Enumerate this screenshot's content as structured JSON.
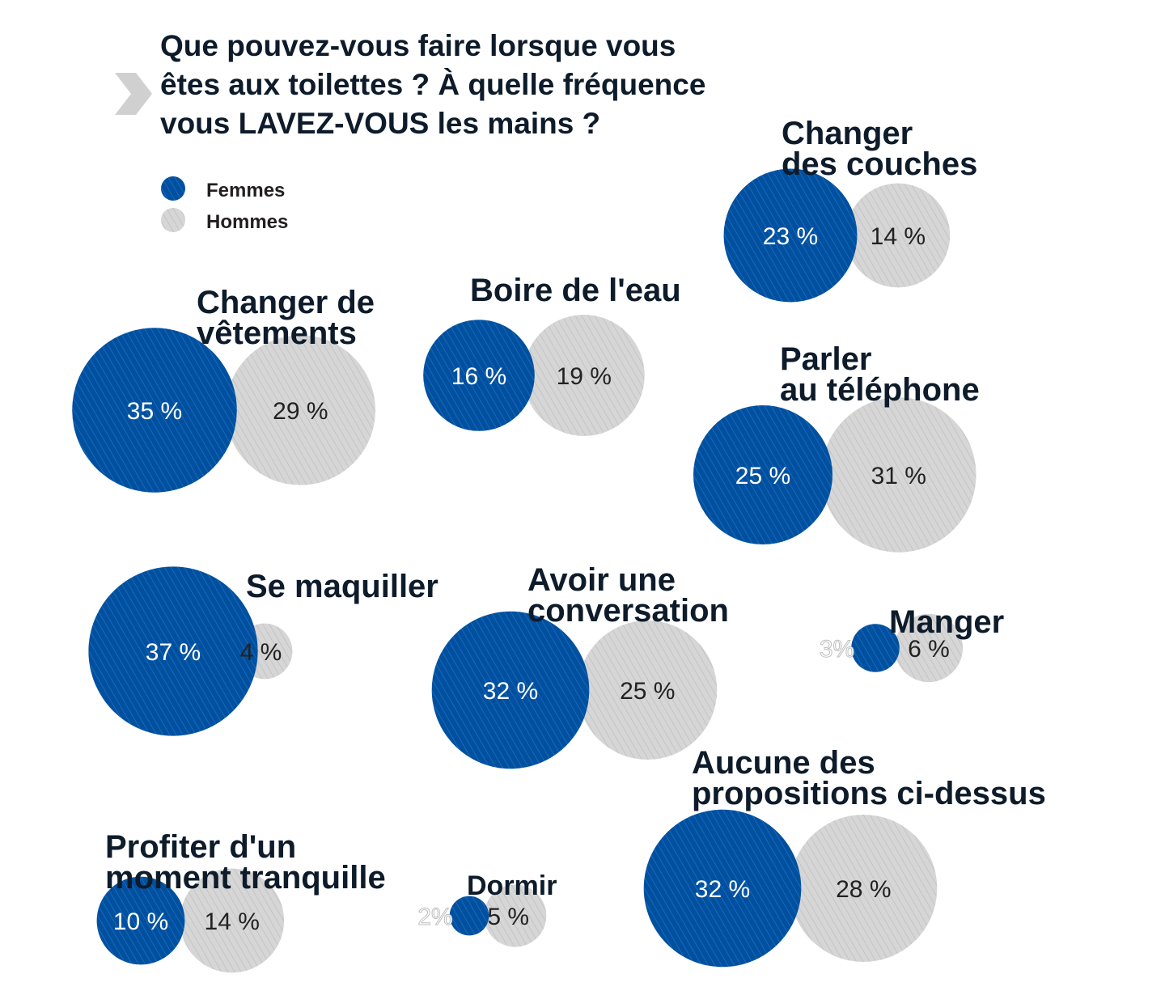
{
  "chart_data": {
    "type": "bubble",
    "title": "Que pouvez-vous faire lorsque vous êtes aux toilettes ? À quelle fréquence vous LAVEZ-VOUS les mains ?",
    "title_lines": [
      "Que pouvez-vous faire lorsque vous",
      "êtes aux toilettes ? À quelle fréquence",
      "vous LAVEZ-VOUS les mains ?"
    ],
    "legend": [
      {
        "name": "Femmes",
        "color": "#0050a0"
      },
      {
        "name": "Hommes",
        "color": "#d3d3d3"
      }
    ],
    "series": [
      {
        "name": "Femmes",
        "color": "#0050a0"
      },
      {
        "name": "Hommes",
        "color": "#d3d3d3"
      }
    ],
    "categories": [
      {
        "key": "couches",
        "label_lines": [
          "Changer",
          "des couches"
        ],
        "femmes": 23,
        "hommes": 14,
        "femmes_label": "23 %",
        "hommes_label": "14 %"
      },
      {
        "key": "vetements",
        "label_lines": [
          "Changer de",
          "vêtements"
        ],
        "femmes": 35,
        "hommes": 29,
        "femmes_label": "35 %",
        "hommes_label": "29 %"
      },
      {
        "key": "eau",
        "label_lines": [
          "Boire de l'eau"
        ],
        "femmes": 16,
        "hommes": 19,
        "femmes_label": "16 %",
        "hommes_label": "19 %"
      },
      {
        "key": "telephone",
        "label_lines": [
          "Parler",
          "au téléphone"
        ],
        "femmes": 25,
        "hommes": 31,
        "femmes_label": "25 %",
        "hommes_label": "31 %"
      },
      {
        "key": "maquiller",
        "label_lines": [
          "Se maquiller"
        ],
        "femmes": 37,
        "hommes": 4,
        "femmes_label": "37 %",
        "hommes_label": "4 %"
      },
      {
        "key": "conversation",
        "label_lines": [
          "Avoir une",
          "conversation"
        ],
        "femmes": 32,
        "hommes": 25,
        "femmes_label": "32 %",
        "hommes_label": "25 %"
      },
      {
        "key": "manger",
        "label_lines": [
          "Manger"
        ],
        "femmes": 3,
        "hommes": 6,
        "femmes_label": "3%",
        "hommes_label": "6 %"
      },
      {
        "key": "aucune",
        "label_lines": [
          "Aucune des",
          "propositions ci-dessus"
        ],
        "femmes": 32,
        "hommes": 28,
        "femmes_label": "32 %",
        "hommes_label": "28 %"
      },
      {
        "key": "tranquille",
        "label_lines": [
          "Profiter d'un",
          "moment tranquille"
        ],
        "femmes": 10,
        "hommes": 14,
        "femmes_label": "10 %",
        "hommes_label": "14 %"
      },
      {
        "key": "dormir",
        "label_lines": [
          "Dormir"
        ],
        "femmes": 2,
        "hommes": 5,
        "femmes_label": "2%",
        "hommes_label": "5 %"
      }
    ]
  }
}
